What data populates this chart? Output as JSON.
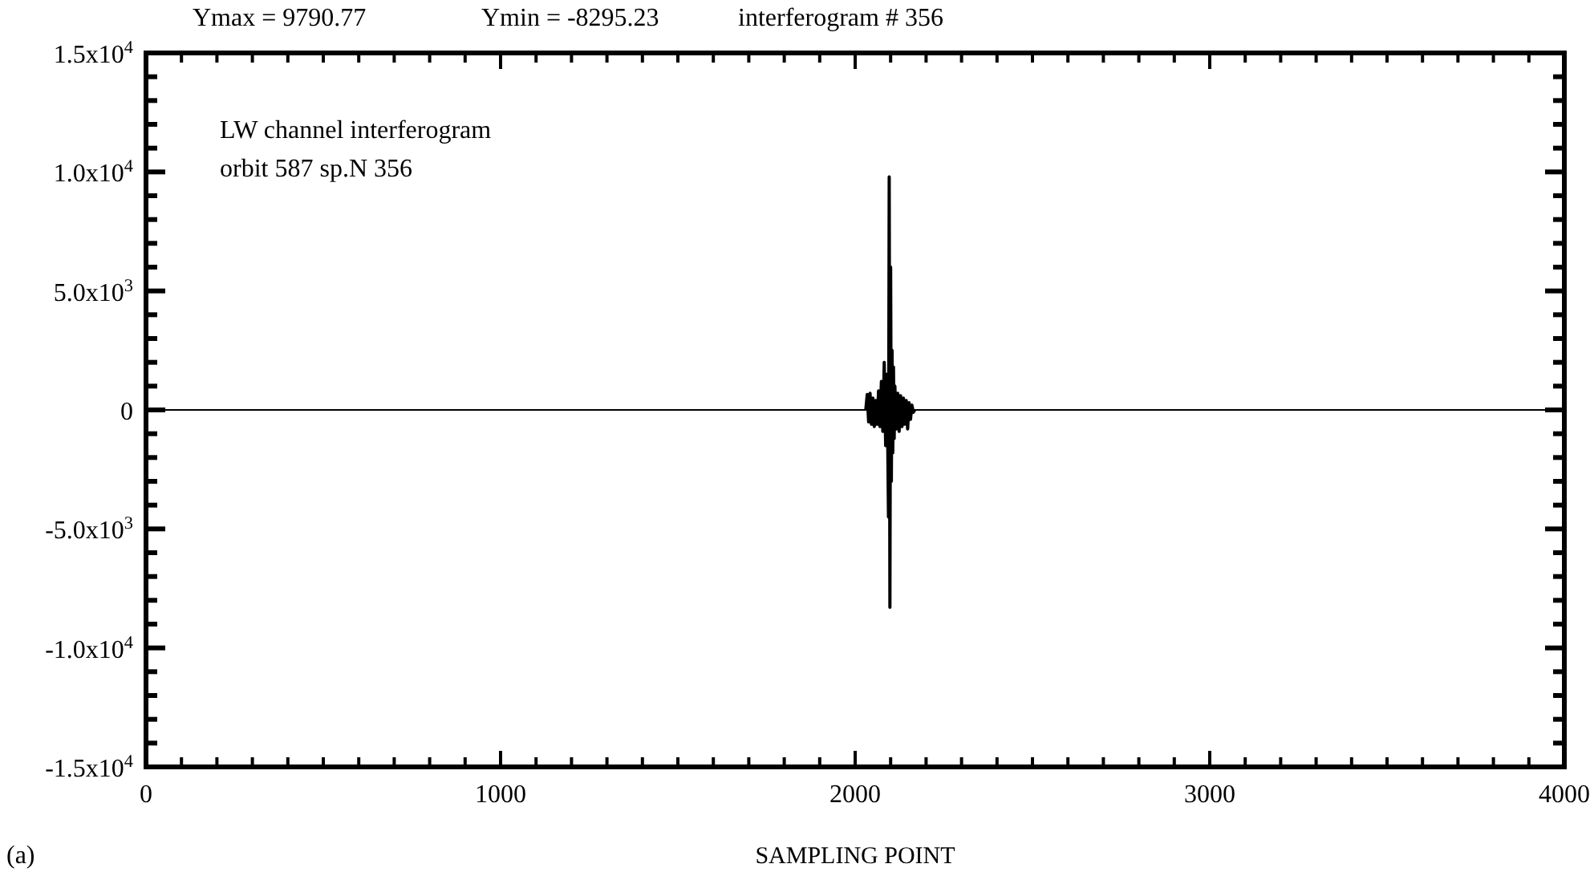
{
  "chart_data": {
    "type": "line",
    "title": "LW channel interferogram",
    "subtitle": "orbit 587 sp.N 356",
    "xlabel": "SAMPLING POINT",
    "annotations": [
      "Ymax = 9790.77",
      "Ymin = -8295.23",
      "interferogram # 356",
      "(a)"
    ],
    "x": [
      2030,
      2034,
      2038,
      2042,
      2046,
      2050,
      2054,
      2058,
      2062,
      2066,
      2070,
      2074,
      2078,
      2082,
      2086,
      2090,
      2094,
      2096,
      2098,
      2100,
      2102,
      2104,
      2106,
      2108,
      2110,
      2112,
      2116,
      2120,
      2124,
      2128,
      2132,
      2136,
      2140,
      2144,
      2148,
      2152,
      2156,
      2160,
      2164,
      2168
    ],
    "values": [
      0,
      650,
      -500,
      700,
      -600,
      500,
      -700,
      400,
      -600,
      800,
      -700,
      1200,
      -900,
      2000,
      -1500,
      1500,
      -4500,
      9790.77,
      -8295.23,
      6000,
      -3000,
      2500,
      -1800,
      1800,
      -1200,
      1000,
      -800,
      700,
      -900,
      600,
      -700,
      500,
      -600,
      400,
      -800,
      300,
      -400,
      200,
      -100,
      0
    ],
    "color": "#000000",
    "line_style": "solid",
    "marker": "none",
    "grid": false,
    "xlim": [
      0,
      4000
    ],
    "ylim": [
      -15000,
      15000
    ],
    "xticks": [
      0,
      {
        "value": 100,
        "label": null
      },
      {
        "value": 200,
        "label": null
      },
      {
        "value": 300,
        "label": null
      },
      {
        "value": 400,
        "label": null
      },
      {
        "value": 500,
        "label": null
      },
      {
        "value": 600,
        "label": null
      },
      {
        "value": 700,
        "label": null
      },
      {
        "value": 800,
        "label": null
      },
      {
        "value": 900,
        "label": null
      },
      1000,
      {
        "value": 1100,
        "label": null
      },
      {
        "value": 1200,
        "label": null
      },
      {
        "value": 1300,
        "label": null
      },
      {
        "value": 1400,
        "label": null
      },
      {
        "value": 1500,
        "label": null
      },
      {
        "value": 1600,
        "label": null
      },
      {
        "value": 1700,
        "label": null
      },
      {
        "value": 1800,
        "label": null
      },
      {
        "value": 1900,
        "label": null
      },
      2000,
      {
        "value": 2100,
        "label": null
      },
      {
        "value": 2200,
        "label": null
      },
      {
        "value": 2300,
        "label": null
      },
      {
        "value": 2400,
        "label": null
      },
      {
        "value": 2500,
        "label": null
      },
      {
        "value": 2600,
        "label": null
      },
      {
        "value": 2700,
        "label": null
      },
      {
        "value": 2800,
        "label": null
      },
      {
        "value": 2900,
        "label": null
      },
      3000,
      {
        "value": 3100,
        "label": null
      },
      {
        "value": 3200,
        "label": null
      },
      {
        "value": 3300,
        "label": null
      },
      {
        "value": 3400,
        "label": null
      },
      {
        "value": 3500,
        "label": null
      },
      {
        "value": 3600,
        "label": null
      },
      {
        "value": 3700,
        "label": null
      },
      {
        "value": 3800,
        "label": null
      },
      {
        "value": 3900,
        "label": null
      },
      4000
    ],
    "yticks": [
      {
        "value": -15000,
        "label": "-1.5x10$^{4}$"
      },
      {
        "value": -14000,
        "label": null
      },
      {
        "value": -13000,
        "label": null
      },
      {
        "value": -12000,
        "label": null
      },
      {
        "value": -11000,
        "label": null
      },
      {
        "value": -10000,
        "label": "-1.0x10$^{4}$"
      },
      {
        "value": -9000,
        "label": null
      },
      {
        "value": -8000,
        "label": null
      },
      {
        "value": -7000,
        "label": null
      },
      {
        "value": -6000,
        "label": null
      },
      {
        "value": -5000,
        "label": "-5.0x10$^{3}$"
      },
      {
        "value": -4000,
        "label": null
      },
      {
        "value": -3000,
        "label": null
      },
      {
        "value": -2000,
        "label": null
      },
      {
        "value": -1000,
        "label": null
      },
      0,
      {
        "value": 1000,
        "label": null
      },
      {
        "value": 2000,
        "label": null
      },
      {
        "value": 3000,
        "label": null
      },
      {
        "value": 4000,
        "label": null
      },
      {
        "value": 5000,
        "label": "5.0x10$^{3}$"
      },
      {
        "value": 6000,
        "label": null
      },
      {
        "value": 7000,
        "label": null
      },
      {
        "value": 8000,
        "label": null
      },
      {
        "value": 9000,
        "label": null
      },
      {
        "value": 10000,
        "label": "1.0x10$^{4}$"
      },
      {
        "value": 11000,
        "label": null
      },
      {
        "value": 12000,
        "label": null
      },
      {
        "value": 13000,
        "label": null
      },
      {
        "value": 14000,
        "label": null
      },
      {
        "value": 15000,
        "label": "1.5x10$^{4}$"
      }
    ],
    "ref_lines": [
      {
        "axis": "y",
        "value": 0,
        "color": "#000000"
      }
    ]
  }
}
